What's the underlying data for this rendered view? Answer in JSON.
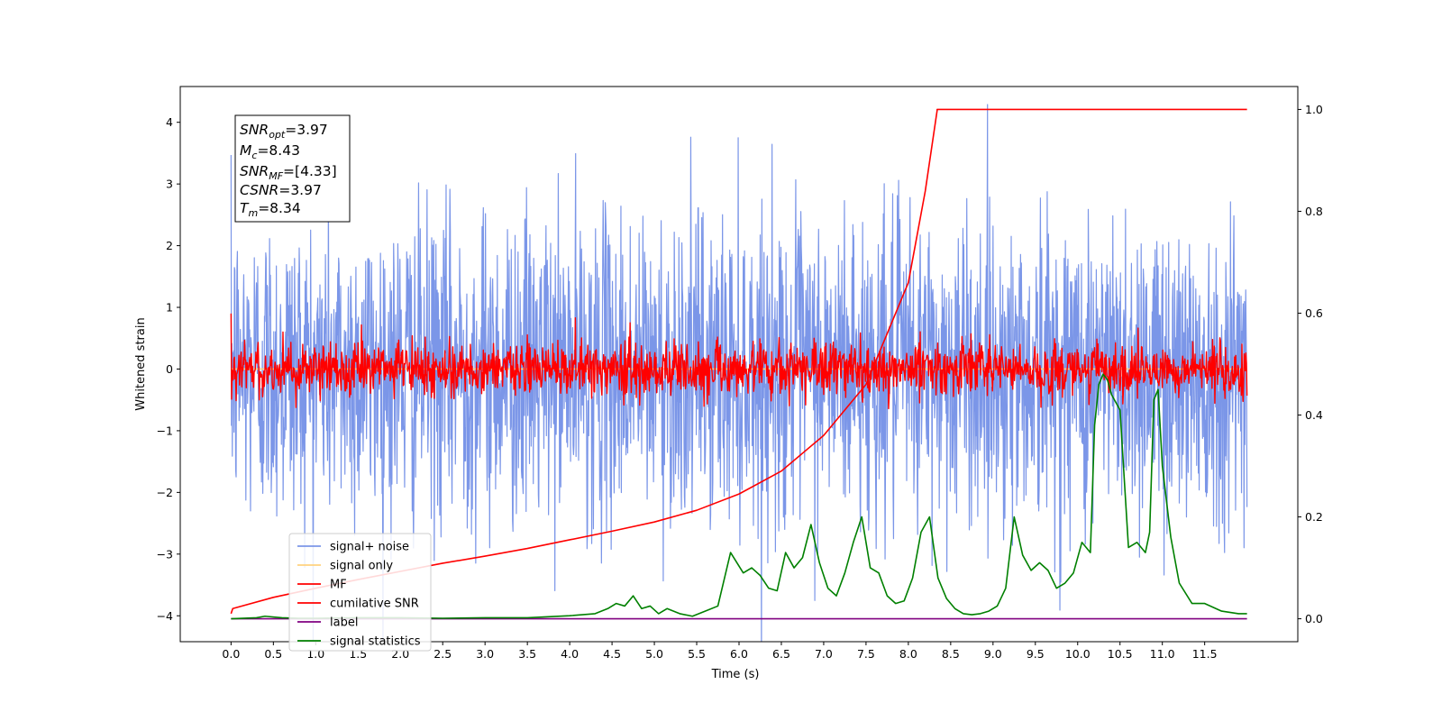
{
  "chart_data": {
    "type": "line",
    "xlabel": "Time (s)",
    "ylabel": "Whitened strain",
    "xlim": [
      -0.6,
      12.6
    ],
    "ylim": [
      -4.42,
      4.58
    ],
    "y2lim": [
      -0.045,
      1.045
    ],
    "xticks": [
      "0.0",
      "0.5",
      "1.0",
      "1.5",
      "2.0",
      "2.5",
      "3.0",
      "3.5",
      "4.0",
      "4.5",
      "5.0",
      "5.5",
      "6.0",
      "6.5",
      "7.0",
      "7.5",
      "8.0",
      "8.5",
      "9.0",
      "9.5",
      "10.0",
      "10.5",
      "11.0",
      "11.5"
    ],
    "yticks": [
      "−4",
      "−3",
      "−2",
      "−1",
      "0",
      "1",
      "2",
      "3",
      "4"
    ],
    "y2ticks": [
      "0.0",
      "0.2",
      "0.4",
      "0.6",
      "0.8",
      "1.0"
    ],
    "annotation": {
      "snr_opt": {
        "name": "SNR",
        "sub": "opt",
        "value": "=3.97"
      },
      "mc": {
        "name": "M",
        "sub": "c",
        "value": "=8.43"
      },
      "snr_mf": {
        "name": "SNR",
        "sub": "MF",
        "value": "=[4.33]"
      },
      "csnr": {
        "name": "CSNR",
        "sub": "",
        "value": "=3.97"
      },
      "tm": {
        "name": "T",
        "sub": "m",
        "value": "=8.34"
      }
    },
    "series": [
      {
        "name": "signal+ noise",
        "axis": "left",
        "color": "#7b96e8",
        "style": "noise",
        "amplitude": 1.25,
        "range": [
          0,
          12
        ]
      },
      {
        "name": "signal only",
        "axis": "left",
        "color": "#ffd27f",
        "style": "flat",
        "value": 0.0,
        "range": [
          0,
          12
        ]
      },
      {
        "name": "MF",
        "axis": "left",
        "color": "#ff0000",
        "style": "noise",
        "amplitude": 0.22,
        "range": [
          0,
          12
        ]
      },
      {
        "name": "cumilative SNR",
        "axis": "right",
        "color": "#ff0000",
        "style": "curve",
        "x": [
          0.0,
          0.02,
          0.5,
          1.0,
          1.5,
          2.0,
          2.5,
          3.0,
          3.5,
          4.0,
          4.5,
          5.0,
          5.5,
          6.0,
          6.5,
          7.0,
          7.5,
          8.0,
          8.2,
          8.34,
          8.34,
          9.0,
          10.0,
          11.0,
          12.0
        ],
        "y": [
          0.01,
          0.02,
          0.042,
          0.06,
          0.077,
          0.093,
          0.109,
          0.123,
          0.138,
          0.155,
          0.172,
          0.19,
          0.213,
          0.245,
          0.29,
          0.36,
          0.46,
          0.66,
          0.84,
          0.998,
          1.0,
          1.0,
          1.0,
          1.0,
          1.0
        ]
      },
      {
        "name": "label",
        "axis": "right",
        "color": "#800080",
        "style": "flat",
        "value": 0.0,
        "range": [
          0,
          12
        ]
      },
      {
        "name": "signal statistics",
        "axis": "right",
        "color": "#008000",
        "style": "curve",
        "x": [
          0.0,
          0.3,
          0.4,
          0.6,
          0.8,
          1.0,
          1.5,
          2.0,
          2.5,
          3.0,
          3.5,
          4.0,
          4.3,
          4.45,
          4.55,
          4.65,
          4.75,
          4.85,
          4.95,
          5.05,
          5.15,
          5.3,
          5.45,
          5.6,
          5.75,
          5.9,
          6.05,
          6.15,
          6.25,
          6.35,
          6.45,
          6.55,
          6.65,
          6.75,
          6.85,
          6.95,
          7.05,
          7.15,
          7.25,
          7.35,
          7.45,
          7.55,
          7.65,
          7.75,
          7.85,
          7.95,
          8.05,
          8.15,
          8.25,
          8.35,
          8.45,
          8.55,
          8.65,
          8.75,
          8.85,
          8.95,
          9.05,
          9.15,
          9.25,
          9.35,
          9.45,
          9.55,
          9.65,
          9.75,
          9.85,
          9.95,
          10.05,
          10.15,
          10.2,
          10.25,
          10.3,
          10.35,
          10.4,
          10.5,
          10.6,
          10.7,
          10.8,
          10.85,
          10.9,
          10.95,
          11.0,
          11.1,
          11.2,
          11.35,
          11.5,
          11.7,
          11.9,
          12.0
        ],
        "y": [
          0.0,
          0.002,
          0.005,
          0.002,
          0.001,
          0.001,
          0.002,
          0.002,
          0.001,
          0.002,
          0.002,
          0.006,
          0.01,
          0.02,
          0.03,
          0.025,
          0.045,
          0.02,
          0.025,
          0.01,
          0.02,
          0.01,
          0.005,
          0.015,
          0.025,
          0.13,
          0.09,
          0.1,
          0.085,
          0.06,
          0.055,
          0.13,
          0.1,
          0.12,
          0.185,
          0.11,
          0.06,
          0.045,
          0.09,
          0.15,
          0.2,
          0.1,
          0.09,
          0.045,
          0.03,
          0.035,
          0.08,
          0.17,
          0.2,
          0.08,
          0.04,
          0.02,
          0.01,
          0.008,
          0.01,
          0.015,
          0.025,
          0.06,
          0.2,
          0.125,
          0.095,
          0.11,
          0.095,
          0.06,
          0.07,
          0.09,
          0.15,
          0.13,
          0.38,
          0.46,
          0.48,
          0.47,
          0.44,
          0.41,
          0.14,
          0.15,
          0.13,
          0.17,
          0.43,
          0.45,
          0.3,
          0.16,
          0.07,
          0.03,
          0.03,
          0.015,
          0.01,
          0.01
        ]
      }
    ]
  }
}
